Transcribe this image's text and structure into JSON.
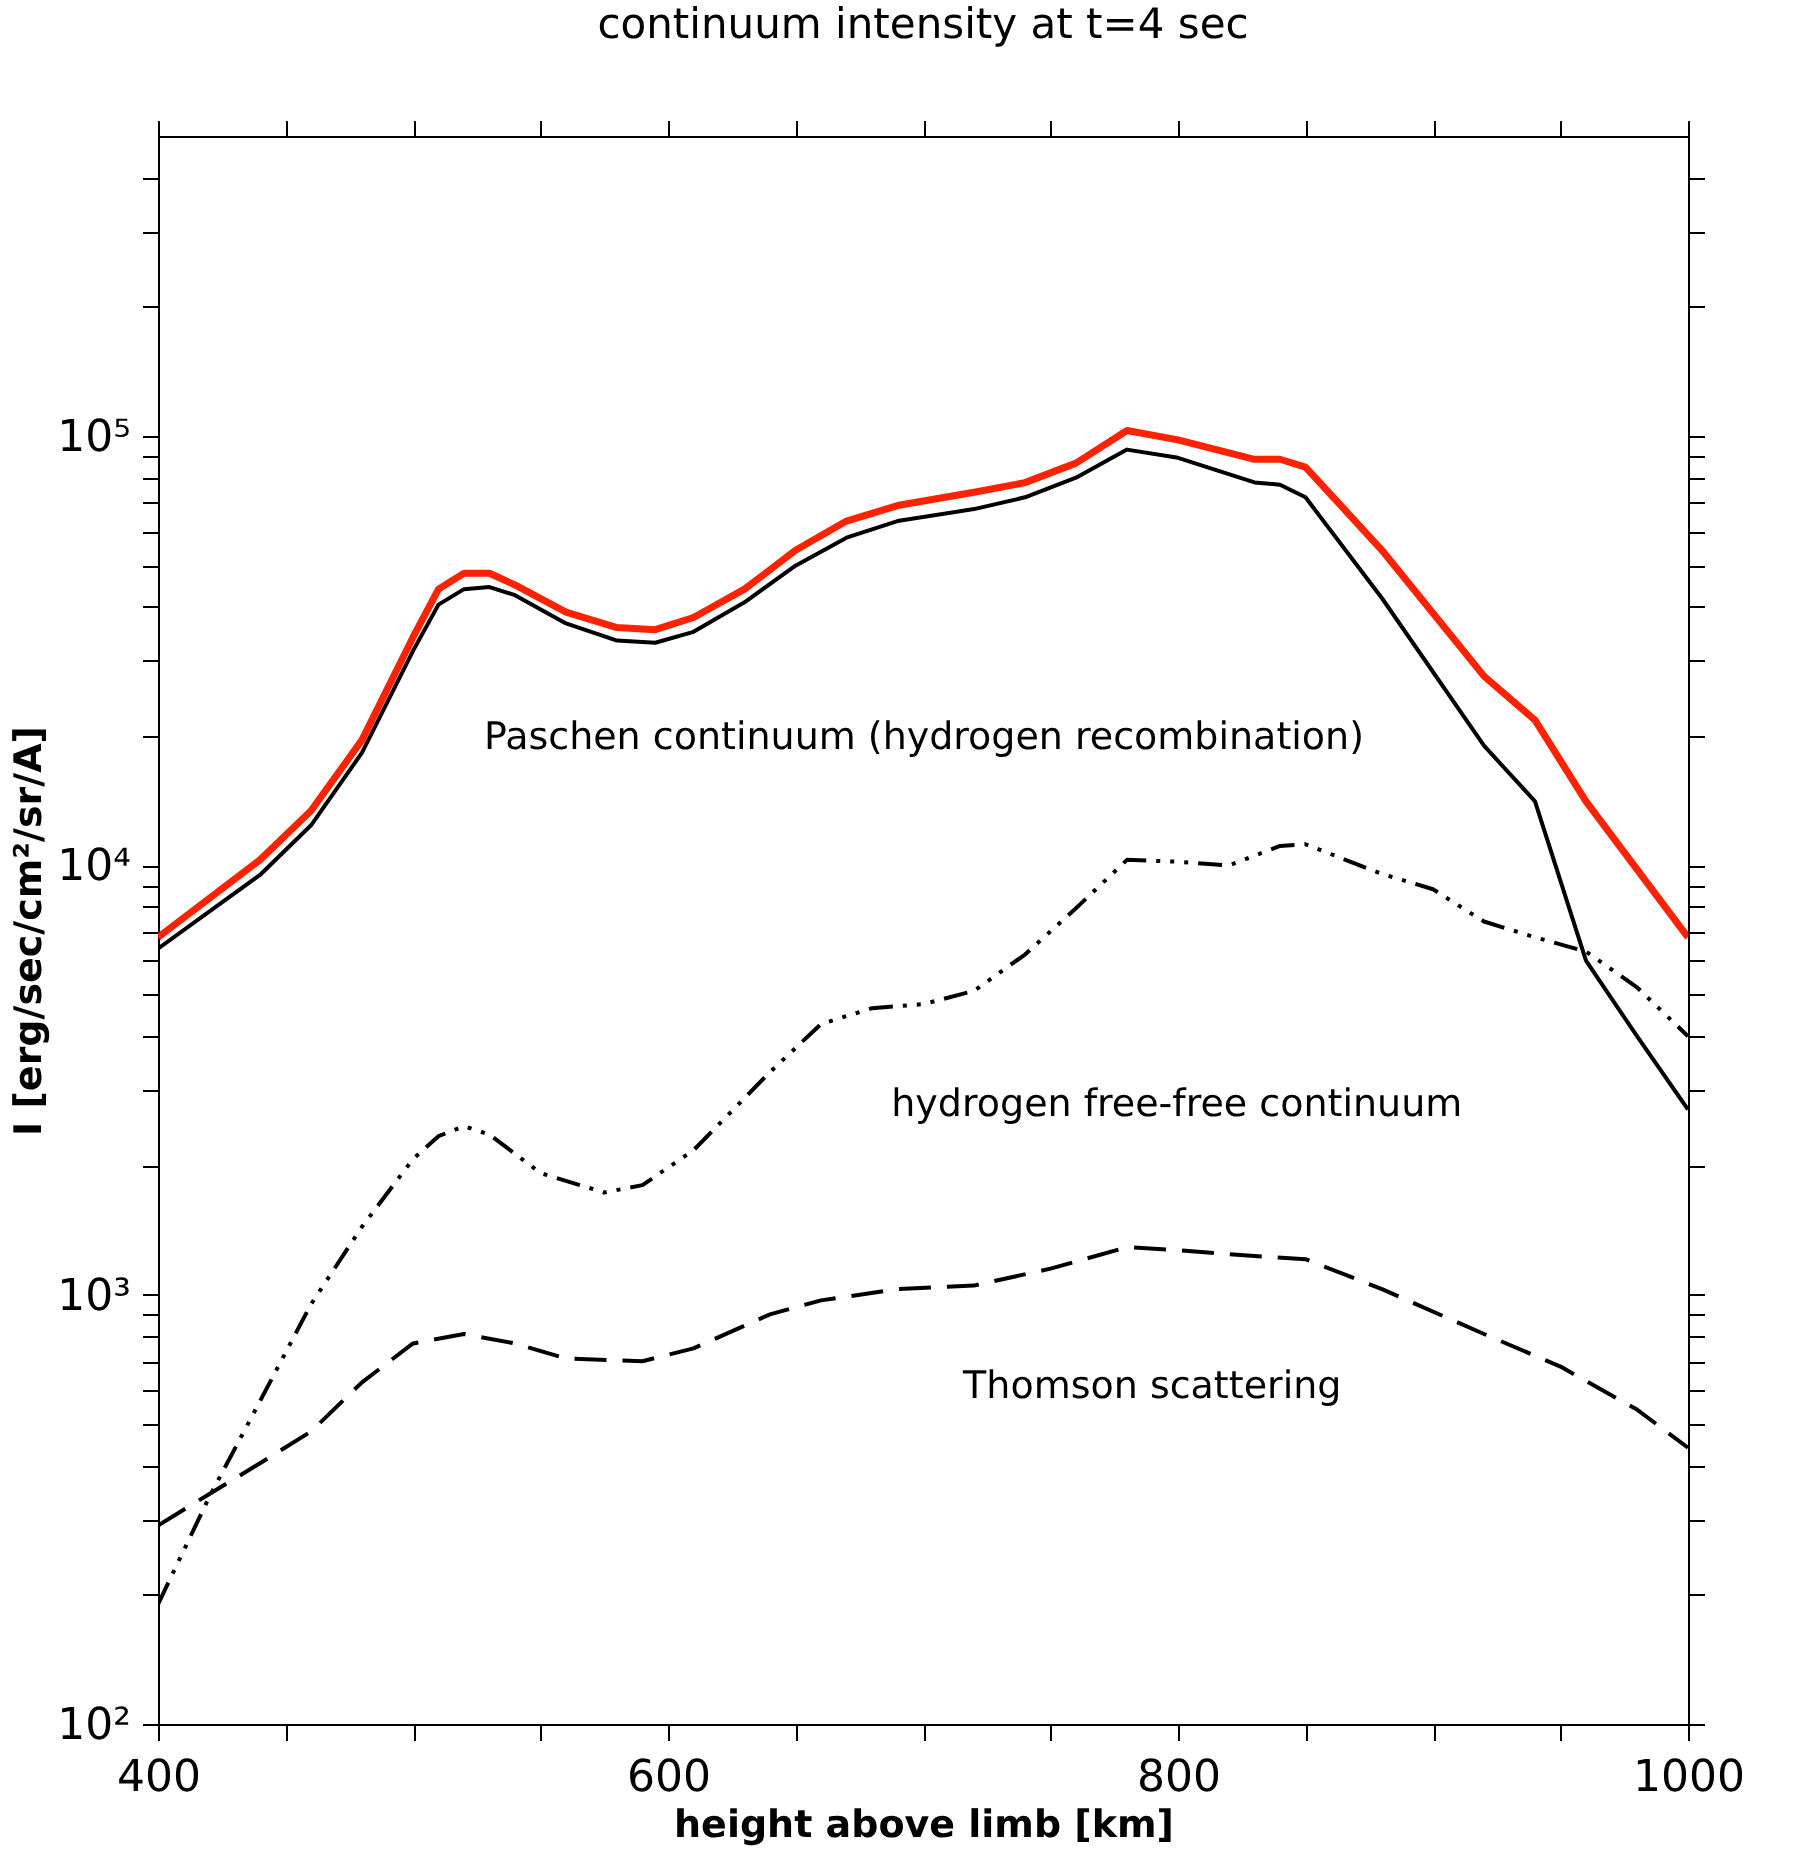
{
  "chart_data": {
    "type": "line",
    "title": "continuum intensity at t=4 sec",
    "xlabel": "height above limb [km]",
    "ylabel": "I [erg/sec/cm²/sr/A]",
    "log": "y",
    "grid": false,
    "xlim": [
      400,
      1000
    ],
    "ylim": [
      100,
      500000
    ],
    "xticks": [
      400,
      {
        "value": 450,
        "label": null
      },
      {
        "value": 500,
        "label": null
      },
      {
        "value": 550,
        "label": null
      },
      600,
      {
        "value": 650,
        "label": null
      },
      {
        "value": 700,
        "label": null
      },
      {
        "value": 750,
        "label": null
      },
      800,
      {
        "value": 850,
        "label": null
      },
      {
        "value": 900,
        "label": null
      },
      {
        "value": 950,
        "label": null
      },
      1000
    ],
    "yticks": [
      {
        "value": 100,
        "label": "10²"
      },
      {
        "value": 200,
        "label": null
      },
      {
        "value": 300,
        "label": null
      },
      {
        "value": 400,
        "label": null
      },
      {
        "value": 500,
        "label": null
      },
      {
        "value": 600,
        "label": null
      },
      {
        "value": 700,
        "label": null
      },
      {
        "value": 800,
        "label": null
      },
      {
        "value": 900,
        "label": null
      },
      {
        "value": 1000,
        "label": "10³"
      },
      {
        "value": 2000,
        "label": null
      },
      {
        "value": 3000,
        "label": null
      },
      {
        "value": 4000,
        "label": null
      },
      {
        "value": 5000,
        "label": null
      },
      {
        "value": 6000,
        "label": null
      },
      {
        "value": 7000,
        "label": null
      },
      {
        "value": 8000,
        "label": null
      },
      {
        "value": 9000,
        "label": null
      },
      {
        "value": 10000,
        "label": "10⁴"
      },
      {
        "value": 20000,
        "label": null
      },
      {
        "value": 30000,
        "label": null
      },
      {
        "value": 40000,
        "label": null
      },
      {
        "value": 50000,
        "label": null
      },
      {
        "value": 60000,
        "label": null
      },
      {
        "value": 70000,
        "label": null
      },
      {
        "value": 80000,
        "label": null
      },
      {
        "value": 90000,
        "label": null
      },
      {
        "value": 100000,
        "label": "10⁵"
      },
      {
        "value": 200000,
        "label": null
      },
      {
        "value": 300000,
        "label": null
      },
      {
        "value": 400000,
        "label": null
      }
    ],
    "series": [
      {
        "color": "#ff2200",
        "line_style": "solid",
        "x": [
          400,
          440,
          460,
          480,
          500,
          510,
          520,
          530,
          540,
          560,
          580,
          595,
          610,
          630,
          650,
          670,
          690,
          720,
          740,
          760,
          780,
          800,
          830,
          840,
          850,
          880,
          920,
          940,
          960,
          1000
        ],
        "values": [
          6800,
          10300,
          13400,
          19600,
          34000,
          44000,
          47900,
          47900,
          45000,
          38900,
          35800,
          35400,
          37800,
          44000,
          54200,
          63400,
          68900,
          74000,
          77900,
          86500,
          103000,
          98000,
          88300,
          88300,
          84700,
          54200,
          27600,
          21800,
          14100,
          6800
        ]
      },
      {
        "color": "#000000",
        "line_style": "solid",
        "x": [
          400,
          440,
          460,
          480,
          500,
          510,
          520,
          530,
          540,
          560,
          580,
          595,
          610,
          630,
          650,
          670,
          690,
          720,
          740,
          760,
          780,
          800,
          830,
          840,
          850,
          880,
          920,
          940,
          960,
          980,
          1000
        ],
        "values": [
          6400,
          9500,
          12400,
          18300,
          31600,
          40500,
          44000,
          44500,
          42600,
          36600,
          33400,
          33000,
          35000,
          41000,
          49900,
          58000,
          63400,
          67600,
          72000,
          80000,
          93000,
          89000,
          78000,
          77000,
          72000,
          41900,
          19000,
          14100,
          6000,
          4000,
          2700
        ]
      },
      {
        "color": "#000000",
        "line_style": "dashdot",
        "x": [
          400,
          420,
          440,
          460,
          480,
          500,
          510,
          520,
          530,
          550,
          575,
          590,
          610,
          640,
          660,
          680,
          700,
          720,
          740,
          760,
          780,
          800,
          820,
          840,
          850,
          880,
          900,
          920,
          940,
          960,
          980,
          1000
        ],
        "values": [
          190,
          337,
          565,
          950,
          1440,
          2070,
          2340,
          2470,
          2360,
          1920,
          1730,
          1800,
          2170,
          3300,
          4270,
          4650,
          4750,
          5100,
          6200,
          7950,
          10300,
          10200,
          10000,
          11100,
          11200,
          9550,
          8800,
          7400,
          6800,
          6300,
          5200,
          4000
        ]
      },
      {
        "color": "#000000",
        "line_style": "dashed",
        "x": [
          400,
          420,
          440,
          460,
          480,
          500,
          520,
          540,
          560,
          590,
          610,
          640,
          660,
          690,
          720,
          750,
          780,
          800,
          830,
          850,
          880,
          920,
          950,
          980,
          1000
        ],
        "values": [
          290,
          343,
          405,
          480,
          625,
          770,
          810,
          770,
          710,
          700,
          750,
          900,
          970,
          1030,
          1050,
          1150,
          1290,
          1270,
          1230,
          1210,
          1030,
          810,
          680,
          540,
          440
        ]
      }
    ],
    "annotations": [
      "Paschen continuum (hydrogen recombination)",
      "hydrogen free-free continuum",
      "Thomson scattering"
    ]
  }
}
